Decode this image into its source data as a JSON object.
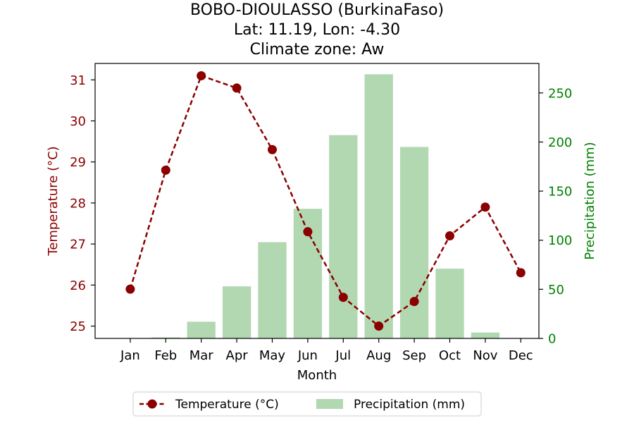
{
  "chart_data": {
    "type": "bar+line",
    "title_lines": [
      "BOBO-DIOULASSO (BurkinaFaso)",
      "Lat: 11.19, Lon: -4.30",
      "Climate zone: Aw"
    ],
    "categories": [
      "Jan",
      "Feb",
      "Mar",
      "Apr",
      "May",
      "Jun",
      "Jul",
      "Aug",
      "Sep",
      "Oct",
      "Nov",
      "Dec"
    ],
    "xlabel": "Month",
    "ylabel_left": "Temperature (°C)",
    "ylabel_right": "Precipitation (mm)",
    "ylim_left": [
      24.7,
      31.4
    ],
    "ylim_right": [
      0,
      280
    ],
    "yticks_left": [
      "25",
      "26",
      "27",
      "28",
      "29",
      "30",
      "31"
    ],
    "yticks_right": [
      "0",
      "50",
      "100",
      "150",
      "200",
      "250"
    ],
    "series": [
      {
        "name": "Temperature (°C)",
        "type": "line",
        "axis": "left",
        "style": "dashed",
        "marker": "circle",
        "color": "#8b0000",
        "values": [
          25.9,
          28.8,
          31.1,
          30.8,
          29.3,
          27.3,
          25.7,
          25.0,
          25.6,
          27.2,
          27.9,
          26.3
        ]
      },
      {
        "name": "Precipitation (mm)",
        "type": "bar",
        "axis": "right",
        "color": "#b2d8b2",
        "values": [
          0,
          1,
          17,
          53,
          98,
          132,
          207,
          269,
          195,
          71,
          6,
          0
        ]
      }
    ],
    "left_axis_color": "#8b0000",
    "right_axis_color": "#008000",
    "legend_position": "bottom-center",
    "grid": false
  }
}
